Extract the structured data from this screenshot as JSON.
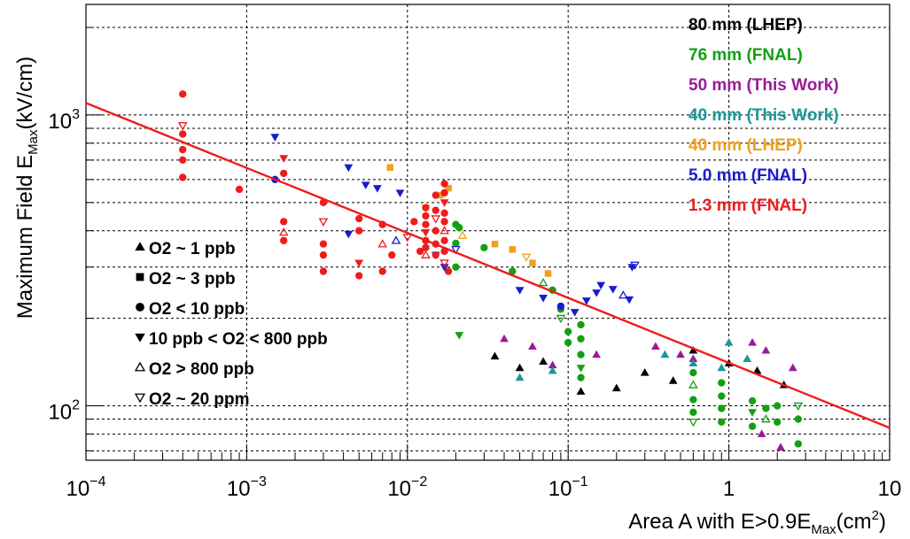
{
  "chart_data": {
    "type": "scatter",
    "title": "",
    "xlabel": "Area A with E>0.9E_Max(cm²)",
    "ylabel": "Maximum Field E_Max(kV/cm)",
    "x_scale": "log",
    "y_scale": "log",
    "xlim": [
      0.0001,
      10
    ],
    "ylim": [
      65,
      2400
    ],
    "grid": true,
    "x_ticks": [
      {
        "value": 0.0001,
        "base": "10",
        "exp": "−4"
      },
      {
        "value": 0.001,
        "base": "10",
        "exp": "−3"
      },
      {
        "value": 0.01,
        "base": "10",
        "exp": "−2"
      },
      {
        "value": 0.1,
        "base": "10",
        "exp": "−1"
      },
      {
        "value": 1,
        "base": "1",
        "exp": ""
      },
      {
        "value": 10,
        "base": "10",
        "exp": ""
      }
    ],
    "y_ticks": [
      {
        "value": 100,
        "base": "10",
        "exp": "2"
      },
      {
        "value": 1000,
        "base": "10",
        "exp": "3"
      }
    ],
    "legend_position": "top-right",
    "series": [
      {
        "name": "80 mm (LHEP)",
        "color": "#000000",
        "points": [
          [
            0.035,
            148
          ],
          [
            0.05,
            135
          ],
          [
            0.07,
            142
          ],
          [
            0.12,
            112
          ],
          [
            0.2,
            115
          ],
          [
            0.3,
            130
          ],
          [
            0.45,
            122
          ],
          [
            0.6,
            155
          ],
          [
            1.0,
            140
          ],
          [
            1.5,
            132
          ],
          [
            2.2,
            118
          ]
        ]
      },
      {
        "name": "76 mm (FNAL)",
        "color": "#12a012",
        "points": [
          [
            0.02,
            420
          ],
          [
            0.02,
            362
          ],
          [
            0.02,
            300
          ],
          [
            0.021,
            410
          ],
          [
            0.021,
            175
          ],
          [
            0.03,
            350
          ],
          [
            0.045,
            290
          ],
          [
            0.07,
            265
          ],
          [
            0.08,
            250
          ],
          [
            0.09,
            215
          ],
          [
            0.09,
            200
          ],
          [
            0.1,
            180
          ],
          [
            0.1,
            165
          ],
          [
            0.12,
            190
          ],
          [
            0.12,
            170
          ],
          [
            0.12,
            150
          ],
          [
            0.12,
            135
          ],
          [
            0.12,
            125
          ],
          [
            0.6,
            130
          ],
          [
            0.6,
            118
          ],
          [
            0.6,
            105
          ],
          [
            0.6,
            95
          ],
          [
            0.6,
            88
          ],
          [
            0.9,
            120
          ],
          [
            0.9,
            108
          ],
          [
            0.9,
            98
          ],
          [
            0.9,
            88
          ],
          [
            1.4,
            104
          ],
          [
            1.4,
            95
          ],
          [
            1.4,
            85
          ],
          [
            1.7,
            98
          ],
          [
            1.7,
            90
          ],
          [
            2.0,
            100
          ],
          [
            2.0,
            88
          ],
          [
            2.7,
            100
          ],
          [
            2.7,
            90
          ],
          [
            2.7,
            74
          ]
        ]
      },
      {
        "name": "50 mm (This Work)",
        "color": "#9a1a9a",
        "points": [
          [
            0.04,
            170
          ],
          [
            0.06,
            160
          ],
          [
            0.08,
            138
          ],
          [
            0.15,
            150
          ],
          [
            0.35,
            160
          ],
          [
            0.5,
            150
          ],
          [
            0.6,
            145
          ],
          [
            1.4,
            165
          ],
          [
            1.7,
            155
          ],
          [
            1.6,
            80
          ],
          [
            2.1,
            72
          ],
          [
            2.5,
            135
          ]
        ]
      },
      {
        "name": "40 mm (This Work)",
        "color": "#1a9898",
        "points": [
          [
            0.05,
            125
          ],
          [
            0.08,
            132
          ],
          [
            0.4,
            150
          ],
          [
            0.6,
            140
          ],
          [
            0.9,
            135
          ],
          [
            1.3,
            145
          ],
          [
            1.0,
            165
          ]
        ]
      },
      {
        "name": "40 mm (LHEP)",
        "color": "#f0a020",
        "points": [
          [
            0.0078,
            660
          ],
          [
            0.013,
            480
          ],
          [
            0.016,
            530
          ],
          [
            0.018,
            560
          ],
          [
            0.022,
            385
          ],
          [
            0.035,
            360
          ],
          [
            0.045,
            345
          ],
          [
            0.055,
            325
          ],
          [
            0.06,
            310
          ],
          [
            0.075,
            285
          ]
        ]
      },
      {
        "name": "5.0 mm (FNAL)",
        "color": "#1a1ad0",
        "points": [
          [
            0.0015,
            840
          ],
          [
            0.0015,
            600
          ],
          [
            0.0043,
            660
          ],
          [
            0.0055,
            575
          ],
          [
            0.0065,
            560
          ],
          [
            0.009,
            540
          ],
          [
            0.0043,
            390
          ],
          [
            0.0085,
            370
          ],
          [
            0.015,
            330
          ],
          [
            0.017,
            300
          ],
          [
            0.02,
            345
          ],
          [
            0.05,
            250
          ],
          [
            0.07,
            235
          ],
          [
            0.09,
            220
          ],
          [
            0.11,
            210
          ],
          [
            0.13,
            230
          ],
          [
            0.15,
            245
          ],
          [
            0.16,
            260
          ],
          [
            0.19,
            252
          ],
          [
            0.22,
            240
          ],
          [
            0.24,
            232
          ],
          [
            0.25,
            300
          ],
          [
            0.26,
            305
          ]
        ]
      },
      {
        "name": "1.3 mm (FNAL)",
        "color": "#ee1c1c",
        "points": [
          [
            0.0004,
            1180
          ],
          [
            0.0004,
            920
          ],
          [
            0.0004,
            860
          ],
          [
            0.0004,
            760
          ],
          [
            0.0004,
            700
          ],
          [
            0.0004,
            610
          ],
          [
            0.0009,
            555
          ],
          [
            0.0017,
            710
          ],
          [
            0.0017,
            630
          ],
          [
            0.0017,
            430
          ],
          [
            0.0017,
            395
          ],
          [
            0.0017,
            370
          ],
          [
            0.003,
            500
          ],
          [
            0.003,
            430
          ],
          [
            0.003,
            360
          ],
          [
            0.003,
            330
          ],
          [
            0.003,
            290
          ],
          [
            0.005,
            440
          ],
          [
            0.005,
            400
          ],
          [
            0.005,
            310
          ],
          [
            0.005,
            280
          ],
          [
            0.007,
            420
          ],
          [
            0.007,
            360
          ],
          [
            0.007,
            290
          ],
          [
            0.008,
            330
          ],
          [
            0.01,
            380
          ],
          [
            0.011,
            430
          ],
          [
            0.012,
            340
          ],
          [
            0.013,
            480
          ],
          [
            0.013,
            450
          ],
          [
            0.013,
            420
          ],
          [
            0.013,
            395
          ],
          [
            0.013,
            370
          ],
          [
            0.013,
            350
          ],
          [
            0.013,
            330
          ],
          [
            0.015,
            530
          ],
          [
            0.015,
            470
          ],
          [
            0.015,
            440
          ],
          [
            0.015,
            400
          ],
          [
            0.015,
            360
          ],
          [
            0.015,
            330
          ],
          [
            0.017,
            580
          ],
          [
            0.017,
            540
          ],
          [
            0.017,
            500
          ],
          [
            0.017,
            460
          ],
          [
            0.017,
            430
          ],
          [
            0.017,
            400
          ],
          [
            0.017,
            370
          ],
          [
            0.017,
            340
          ],
          [
            0.017,
            310
          ],
          [
            0.018,
            290
          ]
        ]
      }
    ],
    "fit_line": {
      "color": "#ee1c1c",
      "x": [
        0.0001,
        10
      ],
      "y": [
        1100,
        84
      ]
    },
    "marker_legend": [
      {
        "marker": "triangle-up-filled",
        "label": "O2 ~ 1 ppb"
      },
      {
        "marker": "square-filled",
        "label": "O2 ~ 3 ppb"
      },
      {
        "marker": "circle-filled",
        "label": "O2 < 10 ppb"
      },
      {
        "marker": "triangle-down-filled",
        "label": "10 ppb < O2 < 800 ppb"
      },
      {
        "marker": "triangle-up-open",
        "label": "O2 > 800 ppb"
      },
      {
        "marker": "triangle-down-open",
        "label": "O2 ~ 20 ppm"
      }
    ]
  }
}
